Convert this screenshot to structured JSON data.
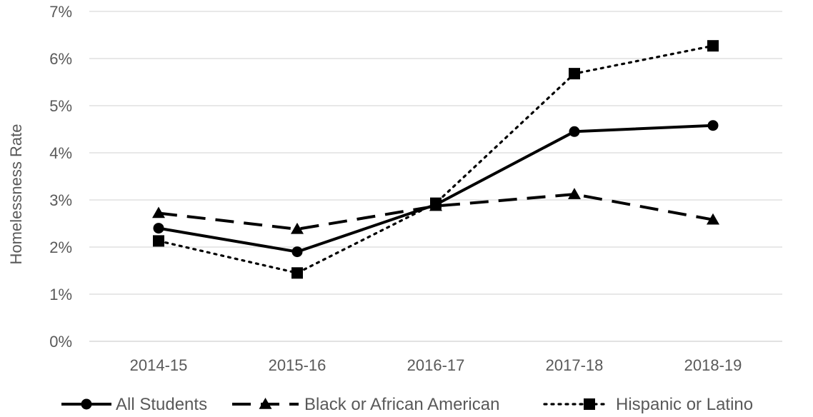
{
  "chart_data": {
    "type": "line",
    "title": "",
    "xlabel": "",
    "ylabel": "Homelessness Rate",
    "categories": [
      "2014-15",
      "2015-16",
      "2016-17",
      "2017-18",
      "2018-19"
    ],
    "ylim": [
      0,
      7
    ],
    "yticks": [
      "0%",
      "1%",
      "2%",
      "3%",
      "4%",
      "5%",
      "6%",
      "7%"
    ],
    "grid": true,
    "legend_position": "bottom",
    "series": [
      {
        "name": "All Students",
        "values": [
          2.4,
          1.9,
          2.9,
          4.45,
          4.58
        ],
        "color": "#000000",
        "line_style": "solid",
        "marker": "circle"
      },
      {
        "name": "Black or African American",
        "values": [
          2.72,
          2.38,
          2.87,
          3.12,
          2.58
        ],
        "color": "#000000",
        "line_style": "dashed",
        "marker": "triangle"
      },
      {
        "name": "Hispanic or Latino",
        "values": [
          2.13,
          1.45,
          2.93,
          5.68,
          6.27
        ],
        "color": "#000000",
        "line_style": "dotted",
        "marker": "square"
      }
    ]
  }
}
